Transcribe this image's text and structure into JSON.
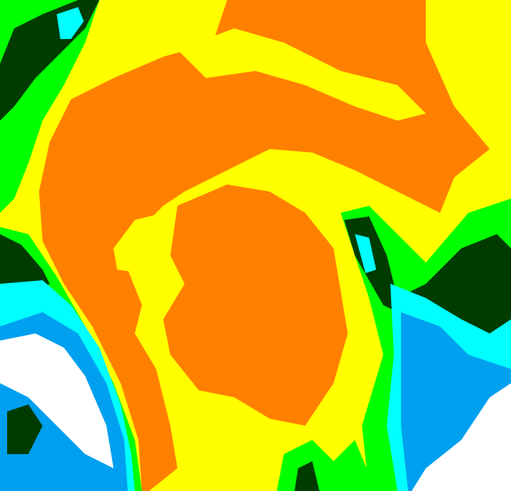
{
  "image": {
    "kind": "enhanced infrared satellite image of a storm system",
    "palette": {
      "coldest_cloud_tops": "#ff8000",
      "cold_cloud": "#ffff00",
      "mid_cloud": "#00ff00",
      "low_cloud": "#003c00",
      "shallow": "#00ffff",
      "warm_surface": "#00a0f0",
      "clear": "#ffffff"
    }
  }
}
